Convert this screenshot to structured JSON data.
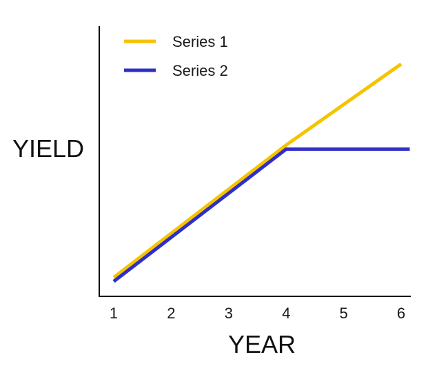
{
  "chart_data": {
    "type": "line",
    "title": "",
    "xlabel": "YEAR",
    "ylabel": "YIELD",
    "x_ticks": [
      "1",
      "2",
      "3",
      "4",
      "5",
      "6"
    ],
    "xlim": [
      0.75,
      6.15
    ],
    "ylim": [
      0,
      10
    ],
    "grid": false,
    "legend_position": "top-left",
    "series": [
      {
        "name": "Series 1",
        "color": "#F5C400",
        "points": [
          [
            1,
            0.7
          ],
          [
            4,
            5.6
          ],
          [
            6,
            8.6
          ]
        ]
      },
      {
        "name": "Series 2",
        "color": "#2F2FC8",
        "points": [
          [
            1,
            0.55
          ],
          [
            4,
            5.45
          ],
          [
            6.15,
            5.45
          ]
        ]
      }
    ]
  }
}
